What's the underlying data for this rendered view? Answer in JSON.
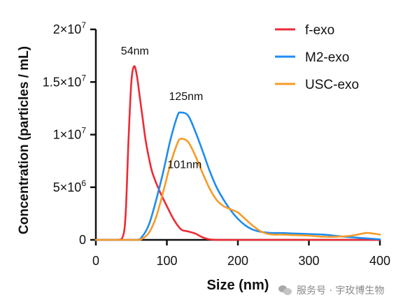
{
  "chart_data": {
    "type": "line",
    "xlabel": "Size (nm)",
    "ylabel": "Concentration (particles / mL)",
    "xlim": [
      0,
      400
    ],
    "ylim": [
      0,
      20000000
    ],
    "x_ticks": [
      0,
      100,
      200,
      300,
      400
    ],
    "x_tick_labels": [
      "0",
      "100",
      "200",
      "300",
      "400"
    ],
    "y_ticks": [
      0,
      5000000,
      10000000,
      15000000,
      20000000
    ],
    "y_tick_labels": [
      {
        "base": "0",
        "exp": ""
      },
      {
        "base": "5×10",
        "exp": "6"
      },
      {
        "base": "1×10",
        "exp": "7"
      },
      {
        "base": "1.5×10",
        "exp": "7"
      },
      {
        "base": "2×10",
        "exp": "7"
      }
    ],
    "grid": false,
    "legend_position": "top-right",
    "series": [
      {
        "name": "f-exo",
        "color": "#ee2a35",
        "x": [
          0,
          30,
          38,
          42,
          46,
          50,
          54,
          58,
          62,
          66,
          70,
          75,
          80,
          90,
          100,
          110,
          120,
          130,
          140,
          150,
          160,
          175,
          190,
          250,
          320,
          400
        ],
        "y": [
          0,
          0,
          300000,
          2500000,
          9500000,
          15000000,
          16500000,
          15500000,
          13500000,
          11500000,
          9500000,
          7700000,
          6300000,
          4600000,
          3200000,
          1900000,
          1000000,
          800000,
          600000,
          250000,
          50000,
          0,
          0,
          0,
          0,
          0
        ]
      },
      {
        "name": "M2-exo",
        "color": "#1e8cf0",
        "x": [
          0,
          55,
          65,
          75,
          85,
          95,
          105,
          115,
          120,
          130,
          140,
          150,
          160,
          170,
          180,
          190,
          200,
          210,
          220,
          230,
          240,
          250,
          260,
          280,
          300,
          320,
          350,
          380,
          400
        ],
        "y": [
          0,
          0,
          300000,
          1500000,
          3800000,
          6500000,
          9500000,
          11800000,
          12100000,
          11800000,
          10300000,
          8500000,
          6600000,
          5000000,
          3800000,
          2800000,
          2000000,
          1400000,
          1000000,
          800000,
          700000,
          650000,
          650000,
          600000,
          550000,
          500000,
          300000,
          150000,
          50000
        ]
      },
      {
        "name": "USC-exo",
        "color": "#f59b2a",
        "x": [
          0,
          55,
          65,
          75,
          85,
          95,
          105,
          115,
          120,
          130,
          140,
          150,
          160,
          170,
          180,
          190,
          200,
          210,
          220,
          230,
          240,
          250,
          260,
          280,
          300,
          320,
          340,
          360,
          380,
          390,
          400
        ],
        "y": [
          0,
          0,
          100000,
          700000,
          2200000,
          4600000,
          7200000,
          9200000,
          9600000,
          9300000,
          8000000,
          6400000,
          4900000,
          3800000,
          3200000,
          2900000,
          2600000,
          2000000,
          1400000,
          900000,
          600000,
          500000,
          500000,
          450000,
          400000,
          300000,
          300000,
          400000,
          650000,
          600000,
          500000
        ]
      }
    ],
    "annotations": [
      {
        "text": "54nm",
        "x": 55,
        "y": 17600000
      },
      {
        "text": "125nm",
        "x": 127,
        "y": 13300000
      },
      {
        "text": "101nm",
        "x": 125,
        "y": 6800000
      }
    ]
  },
  "watermark": {
    "icon": "wechat-icon",
    "text": "服务号 · 宇玫博生物"
  }
}
